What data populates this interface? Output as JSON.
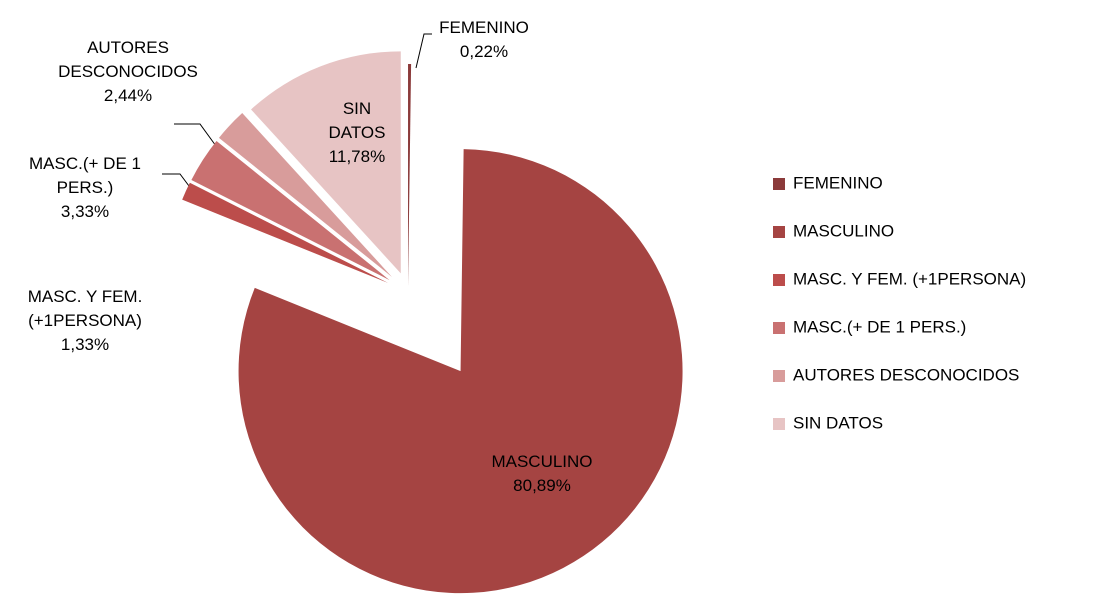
{
  "chart_data": {
    "type": "pie",
    "categories": [
      "FEMENINO",
      "MASCULINO",
      "MASC. Y FEM. (+1PERSONA)",
      "MASC.(+ DE 1 PERS.)",
      "AUTORES DESCONOCIDOS",
      "SIN DATOS"
    ],
    "values": [
      0.22,
      80.89,
      1.33,
      3.33,
      2.44,
      11.78
    ],
    "value_labels": [
      "0,22%",
      "80,89%",
      "1,33%",
      "3,33%",
      "2,44%",
      "11,78%"
    ],
    "colors": [
      "#8b3a3a",
      "#a54442",
      "#bc4d4b",
      "#c97171",
      "#d89c9b",
      "#e7c4c4"
    ],
    "legend": "right"
  }
}
